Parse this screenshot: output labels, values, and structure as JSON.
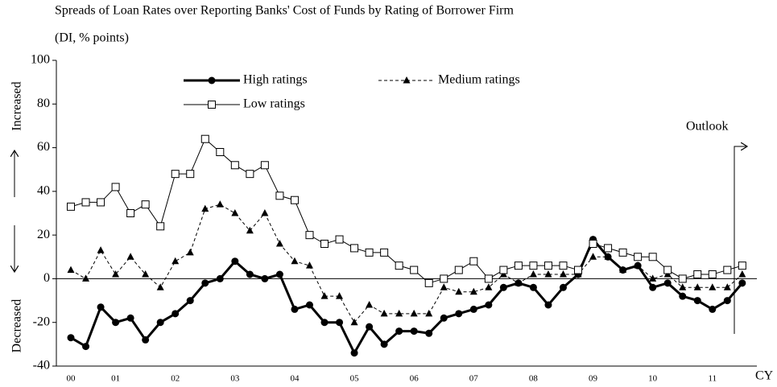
{
  "chart_data": {
    "type": "line",
    "title": "Spreads of Loan Rates over Reporting Banks' Cost of Funds by Rating of Borrower Firm",
    "subtitle": "(DI, % points)",
    "y_annotations": [
      "Increased",
      "Decreased"
    ],
    "outlook_label": "Outlook",
    "x_unit": "CY",
    "categories": [
      "00",
      null,
      null,
      "01",
      null,
      null,
      null,
      "02",
      null,
      null,
      null,
      "03",
      null,
      null,
      null,
      "04",
      null,
      null,
      null,
      "05",
      null,
      null,
      null,
      "06",
      null,
      null,
      null,
      "07",
      null,
      null,
      null,
      "08",
      null,
      null,
      null,
      "09",
      null,
      null,
      null,
      "10",
      null,
      null,
      null,
      "11",
      null,
      null
    ],
    "series": [
      {
        "name": "High ratings",
        "color": "#000000",
        "marker": "circle",
        "dash": false,
        "width": 3,
        "values": [
          -27,
          -31,
          -13,
          -20,
          -18,
          -28,
          -20,
          -16,
          -10,
          -2,
          0,
          8,
          2,
          0,
          2,
          -14,
          -12,
          -20,
          -20,
          -34,
          -22,
          -30,
          -24,
          -24,
          -25,
          -18,
          -16,
          -14,
          -12,
          -4,
          -2,
          -4,
          -12,
          -4,
          2,
          18,
          10,
          4,
          6,
          -4,
          -2,
          -8,
          -10,
          -14,
          -10,
          -2
        ]
      },
      {
        "name": "Medium ratings",
        "color": "#000000",
        "marker": "triangle",
        "dash": true,
        "width": 1,
        "values": [
          4,
          0,
          13,
          2,
          10,
          2,
          -4,
          8,
          12,
          32,
          34,
          30,
          22,
          30,
          16,
          8,
          6,
          -8,
          -8,
          -20,
          -12,
          -16,
          -16,
          -16,
          -16,
          -4,
          -6,
          -6,
          -4,
          2,
          -2,
          2,
          2,
          2,
          2,
          10,
          10,
          4,
          6,
          0,
          2,
          -4,
          -4,
          -4,
          -4,
          2
        ]
      },
      {
        "name": "Low ratings",
        "color": "#000000",
        "marker": "square",
        "dash": false,
        "width": 1,
        "values": [
          33,
          35,
          35,
          42,
          30,
          34,
          24,
          48,
          48,
          64,
          58,
          52,
          48,
          52,
          38,
          36,
          20,
          16,
          18,
          14,
          12,
          12,
          6,
          4,
          -2,
          0,
          4,
          8,
          0,
          4,
          6,
          6,
          6,
          6,
          4,
          16,
          14,
          12,
          10,
          10,
          4,
          0,
          2,
          2,
          4,
          6
        ]
      }
    ],
    "ylim": [
      -40,
      100
    ],
    "yticks": [
      -40,
      -20,
      0,
      20,
      40,
      60,
      80,
      100
    ],
    "grid": false
  }
}
